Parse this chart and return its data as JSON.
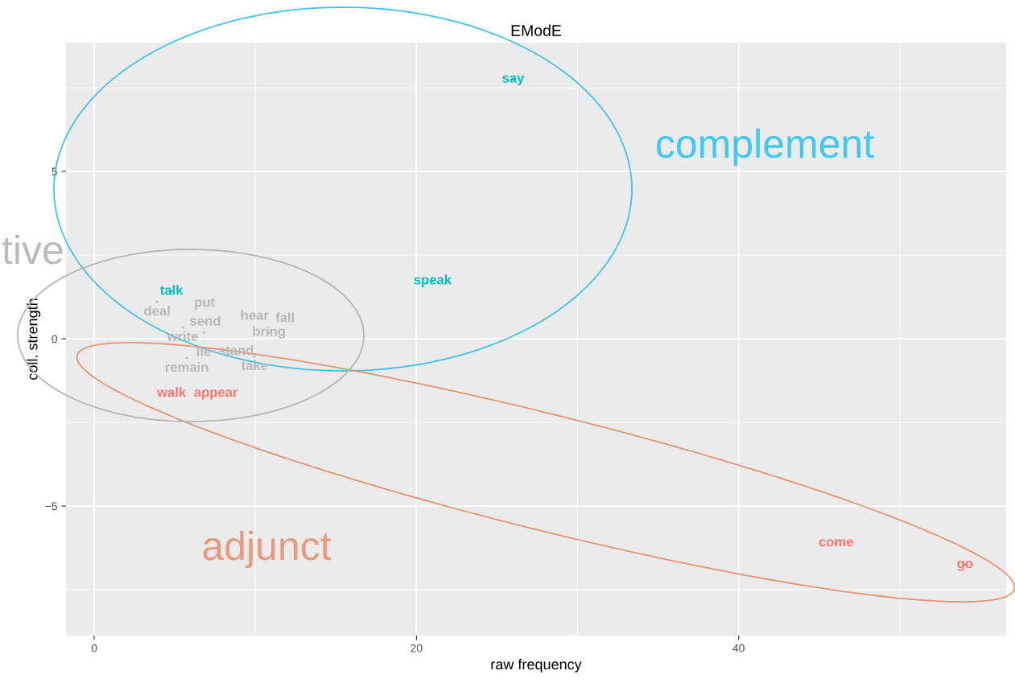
{
  "chart_data": {
    "type": "scatter",
    "title": "EModE",
    "xlabel": "raw frequency",
    "ylabel": "coll. strength",
    "xlim": [
      -1.75,
      56.6
    ],
    "ylim": [
      -8.87,
      8.85
    ],
    "xticks": [
      0,
      20,
      40
    ],
    "yticks": [
      -5,
      0,
      5
    ],
    "grid": true,
    "marker": "none",
    "series": [
      {
        "color": "#00bfc4",
        "x": [
          26,
          21,
          4.8
        ],
        "values": [
          7.76,
          1.73,
          1.42
        ],
        "value_labels": [
          "say",
          "speak",
          "talk"
        ]
      },
      {
        "color": "#f8766d",
        "x": [
          46.05,
          54.05,
          4.8,
          7.55
        ],
        "values": [
          -6.1,
          -6.75,
          -1.63,
          -1.63
        ],
        "value_labels": [
          "come",
          "go",
          "walk",
          "appear"
        ]
      },
      {
        "color": "#b8b8b8",
        "x": [
          6.85,
          3.9,
          9.95,
          11.85,
          10.85,
          6.9,
          5.5,
          6.8,
          8.8,
          9.95,
          5.75
        ],
        "values": [
          1.06,
          1.1,
          0.67,
          0.6,
          0.19,
          0.5,
          0.34,
          0.19,
          -0.38,
          -0.53,
          -0.58
        ],
        "value_labels": [
          "put",
          "deal",
          "hear",
          "fall",
          "bring",
          "send",
          "write",
          "lie",
          "stand",
          "take",
          "remain"
        ]
      }
    ],
    "annotations": [
      "complement",
      "adjunct",
      "tive"
    ]
  }
}
